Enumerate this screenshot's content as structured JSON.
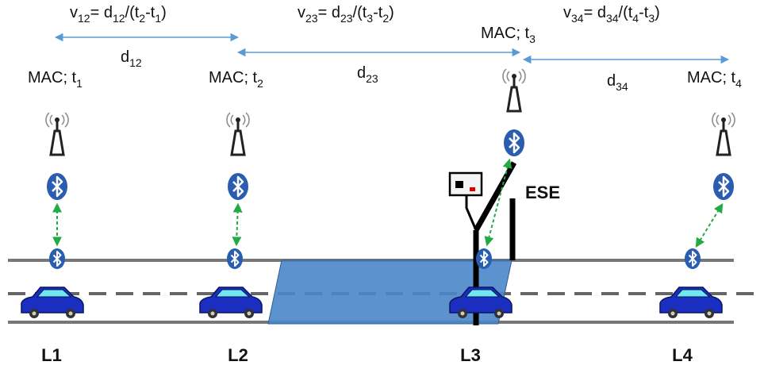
{
  "formulas": [
    {
      "parts": [
        "v",
        "12",
        "= d",
        "12",
        "/(t",
        "2",
        "-t",
        "1",
        ")"
      ]
    },
    {
      "parts": [
        "v",
        "23",
        "= d",
        "23",
        "/(t",
        "3",
        "-t",
        "2",
        ")"
      ]
    },
    {
      "parts": [
        "v",
        "34",
        "= d",
        "34",
        "/(t",
        "4",
        "-t",
        "3",
        ")"
      ]
    }
  ],
  "distances": [
    {
      "parts": [
        "d",
        "12"
      ]
    },
    {
      "parts": [
        "d",
        "23"
      ]
    },
    {
      "parts": [
        "d",
        "34"
      ]
    }
  ],
  "readers": [
    {
      "parts": [
        "MAC; t",
        "1"
      ]
    },
    {
      "parts": [
        "MAC; t",
        "2"
      ]
    },
    {
      "parts": [
        "MAC; t",
        "3"
      ]
    },
    {
      "parts": [
        "MAC; t",
        "4"
      ]
    }
  ],
  "locations": [
    "L1",
    "L2",
    "L3",
    "L4"
  ],
  "enforcement_label": "ESE"
}
